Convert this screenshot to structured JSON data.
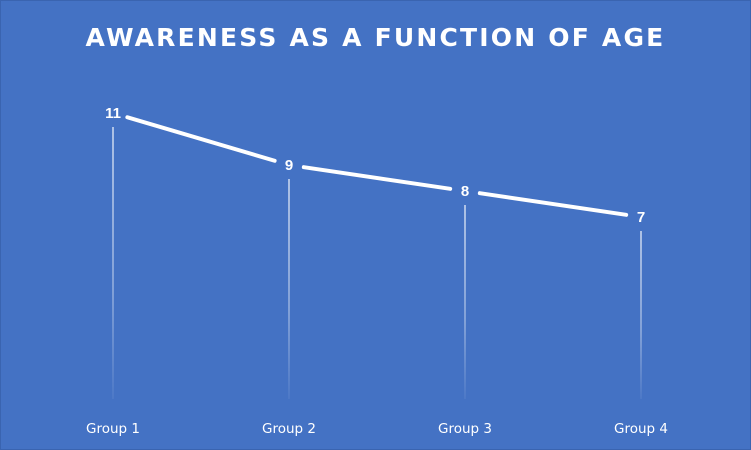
{
  "chart_data": {
    "type": "line",
    "title": "AWARENESS AS A FUNCTION OF AGE",
    "categories": [
      "Group 1",
      "Group 2",
      "Group 3",
      "Group 4"
    ],
    "series": [
      {
        "values": [
          11,
          9,
          8,
          7
        ]
      }
    ],
    "data_labels": [
      "11",
      "9",
      "8",
      "7"
    ],
    "drop_lines": true,
    "grid": false,
    "legend": "none",
    "colors": {
      "background": "#4472c4",
      "line": "#ffffff",
      "text": "#ffffff"
    }
  }
}
